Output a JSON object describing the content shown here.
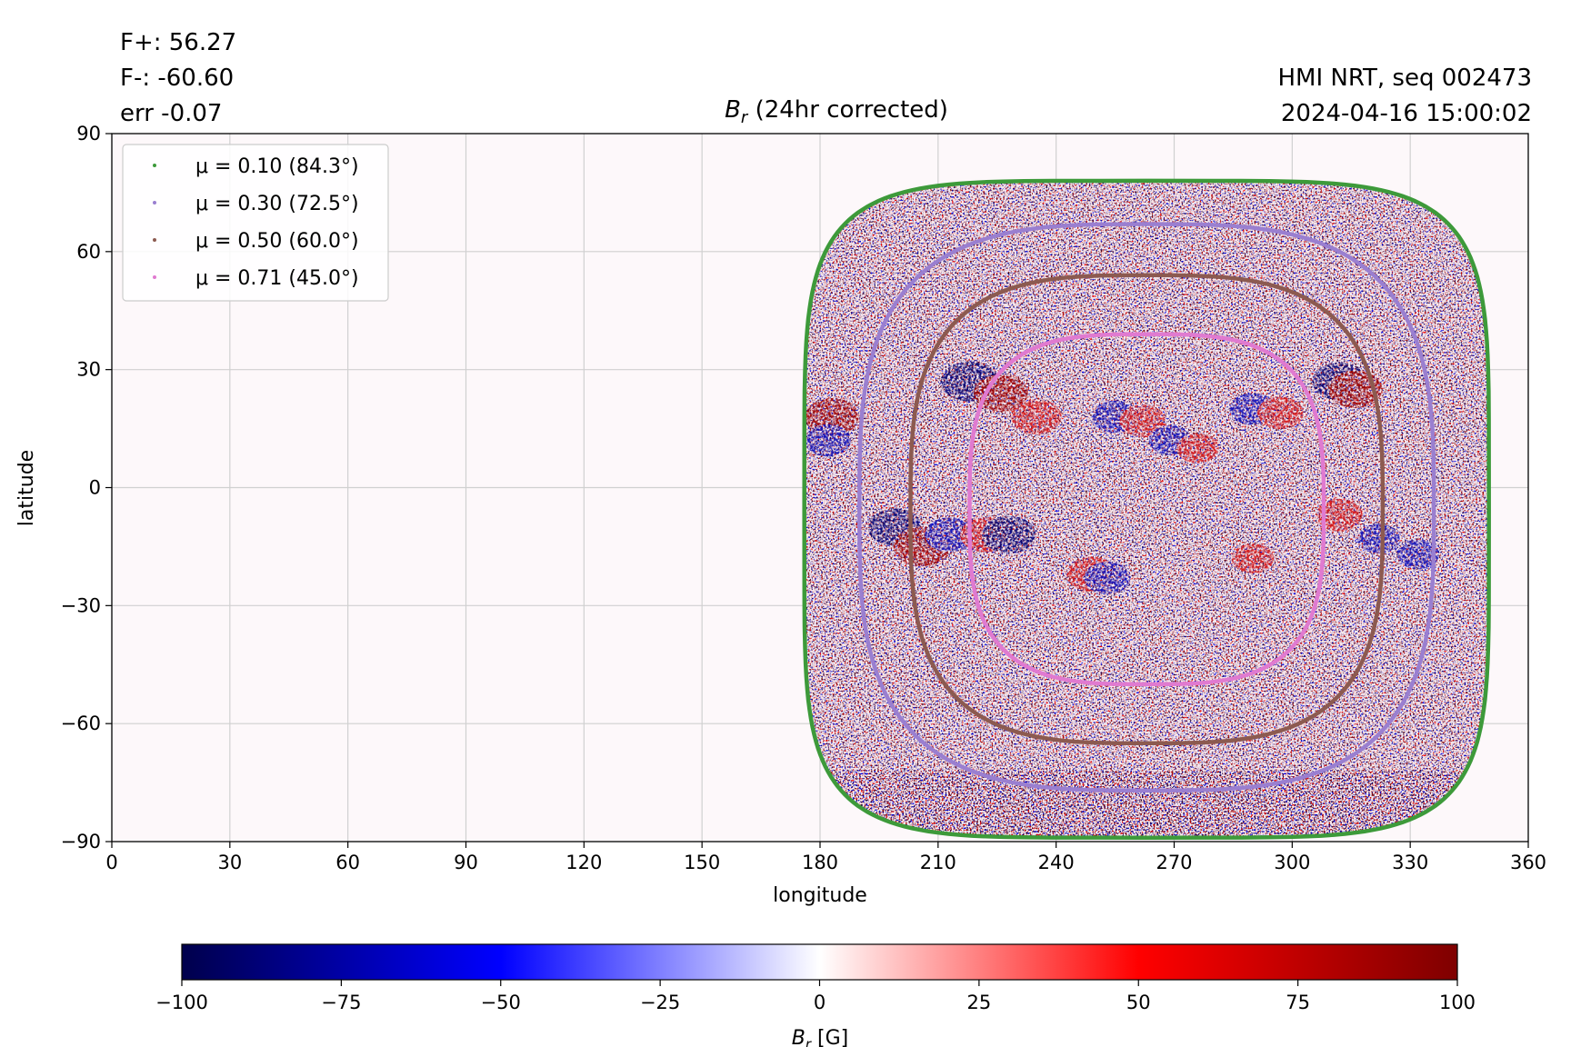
{
  "header": {
    "flux_plus": "F+: 56.27",
    "flux_minus": "F-: -60.60",
    "flux_err": "err -0.07",
    "instrument": "HMI NRT, seq 002473",
    "timestamp": "2024-04-16 15:00:02"
  },
  "chart_data": {
    "type": "heatmap",
    "title_symbol": "B",
    "title_subscript": "r",
    "title_rest": " (24hr corrected)",
    "xlabel": "longitude",
    "ylabel": "latitude",
    "xlim": [
      0,
      360
    ],
    "ylim": [
      -90,
      90
    ],
    "xticks": [
      0,
      30,
      60,
      90,
      120,
      150,
      180,
      210,
      240,
      270,
      300,
      330,
      360
    ],
    "yticks": [
      -90,
      -60,
      -30,
      0,
      30,
      60,
      90
    ],
    "grid": true,
    "legend_position": "top-left",
    "disk_extent": {
      "lon_min": 176,
      "lon_max": 350,
      "lon_center": 263,
      "lat_min": -89,
      "lat_max": 78
    },
    "series": [
      {
        "name": "μ = 0.10 (84.3°)",
        "mu": 0.1,
        "angle_deg": 84.3,
        "color": "#3d9a3a",
        "lon_range": [
          176,
          350
        ],
        "lat_range": [
          -89,
          78
        ]
      },
      {
        "name": "μ = 0.30 (72.5°)",
        "mu": 0.3,
        "angle_deg": 72.5,
        "color": "#9a7fd0",
        "lon_range": [
          190,
          336
        ],
        "lat_range": [
          -77,
          67
        ]
      },
      {
        "name": "μ = 0.50 (60.0°)",
        "mu": 0.5,
        "angle_deg": 60.0,
        "color": "#8c5a50",
        "lon_range": [
          203,
          323
        ],
        "lat_range": [
          -65,
          54
        ]
      },
      {
        "name": "μ = 0.71 (45.0°)",
        "mu": 0.71,
        "angle_deg": 45.0,
        "color": "#e07ad0",
        "lon_range": [
          218,
          308
        ],
        "lat_range": [
          -50,
          39
        ]
      }
    ],
    "active_regions": [
      {
        "lon": 218,
        "lat": 27,
        "polarity": "negative",
        "strength": 100
      },
      {
        "lon": 226,
        "lat": 24,
        "polarity": "positive",
        "strength": 90
      },
      {
        "lon": 235,
        "lat": 18,
        "polarity": "positive",
        "strength": 80
      },
      {
        "lon": 255,
        "lat": 18,
        "polarity": "negative",
        "strength": 70
      },
      {
        "lon": 262,
        "lat": 17,
        "polarity": "positive",
        "strength": 70
      },
      {
        "lon": 269,
        "lat": 12,
        "polarity": "negative",
        "strength": 60
      },
      {
        "lon": 276,
        "lat": 10,
        "polarity": "positive",
        "strength": 60
      },
      {
        "lon": 290,
        "lat": 20,
        "polarity": "negative",
        "strength": 70
      },
      {
        "lon": 297,
        "lat": 19,
        "polarity": "positive",
        "strength": 70
      },
      {
        "lon": 312,
        "lat": 27,
        "polarity": "negative",
        "strength": 90
      },
      {
        "lon": 316,
        "lat": 25,
        "polarity": "positive",
        "strength": 90
      },
      {
        "lon": 183,
        "lat": 18,
        "polarity": "positive",
        "strength": 90
      },
      {
        "lon": 182,
        "lat": 12,
        "polarity": "negative",
        "strength": 70
      },
      {
        "lon": 199,
        "lat": -10,
        "polarity": "negative",
        "strength": 90
      },
      {
        "lon": 206,
        "lat": -15,
        "polarity": "positive",
        "strength": 100
      },
      {
        "lon": 213,
        "lat": -12,
        "polarity": "negative",
        "strength": 80
      },
      {
        "lon": 222,
        "lat": -12,
        "polarity": "positive",
        "strength": 80
      },
      {
        "lon": 228,
        "lat": -12,
        "polarity": "negative",
        "strength": 90
      },
      {
        "lon": 249,
        "lat": -22,
        "polarity": "positive",
        "strength": 80
      },
      {
        "lon": 253,
        "lat": -23,
        "polarity": "negative",
        "strength": 70
      },
      {
        "lon": 290,
        "lat": -18,
        "polarity": "positive",
        "strength": 60
      },
      {
        "lon": 312,
        "lat": -7,
        "polarity": "positive",
        "strength": 70
      },
      {
        "lon": 322,
        "lat": -13,
        "polarity": "negative",
        "strength": 60
      },
      {
        "lon": 332,
        "lat": -17,
        "polarity": "negative",
        "strength": 60
      }
    ],
    "colorbar": {
      "label_symbol": "B",
      "label_subscript": "r",
      "label_unit": " [G]",
      "range": [
        -100,
        100
      ],
      "ticks": [
        -100,
        -75,
        -50,
        -25,
        0,
        25,
        50,
        75,
        100
      ],
      "tick_labels": [
        "−100",
        "−75",
        "−50",
        "−25",
        "0",
        "25",
        "50",
        "75",
        "100"
      ],
      "colormap": "seismic",
      "colors": [
        "#00004c",
        "#0000ff",
        "#ffffff",
        "#ff0000",
        "#7f0000"
      ]
    }
  }
}
